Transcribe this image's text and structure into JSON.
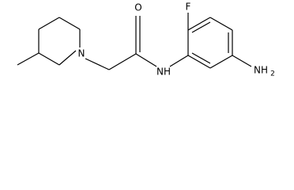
{
  "atoms": {
    "fluorine": "F",
    "oxygen": "O",
    "ring_nitrogen": "N",
    "amide_nh": "NH",
    "amine": {
      "label": "NH",
      "subscript": "2"
    }
  }
}
